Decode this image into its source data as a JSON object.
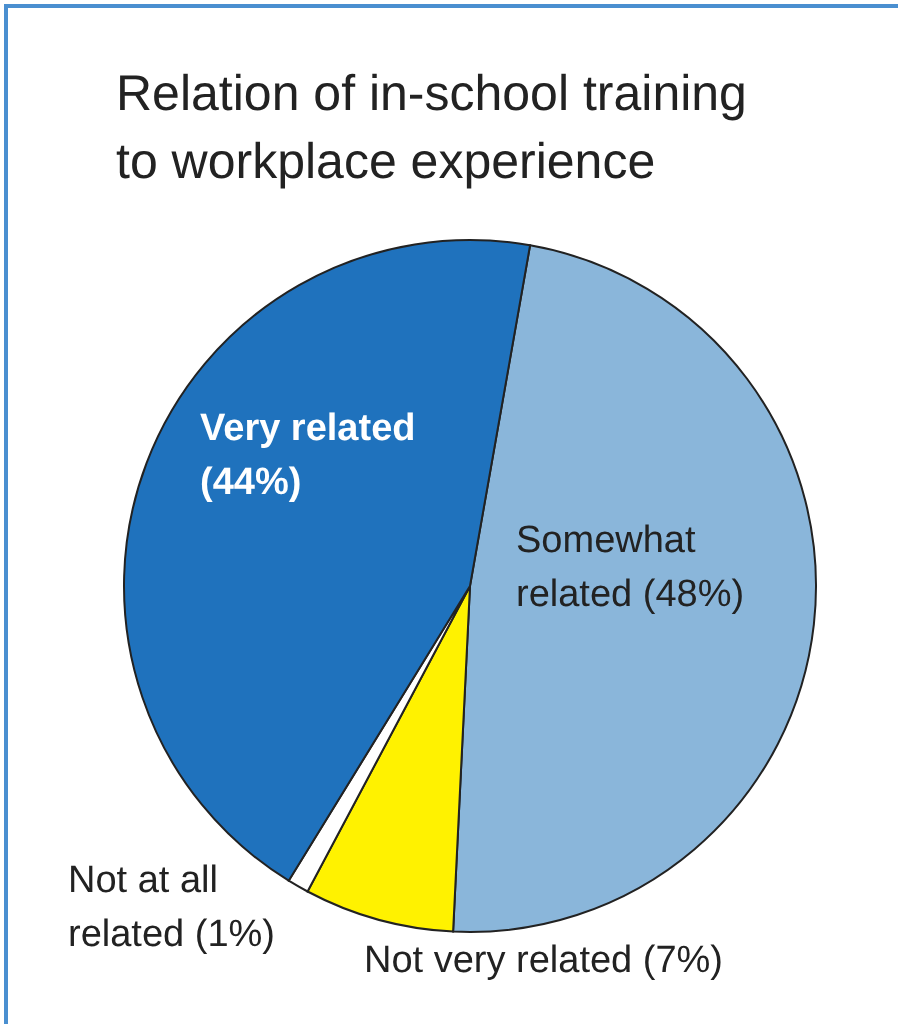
{
  "chart_data": {
    "type": "pie",
    "title": "Relation of in-school training to workplace experience",
    "categories": [
      "Somewhat related",
      "Not very related",
      "Not at all related",
      "Very related"
    ],
    "values": [
      48,
      7,
      1,
      44
    ],
    "value_labels": [
      "(48%)",
      "(7%)",
      "(1%)",
      "(44%)"
    ],
    "colors": [
      "#8ab6da",
      "#fff200",
      "#ffffff",
      "#1f72bd"
    ]
  }
}
